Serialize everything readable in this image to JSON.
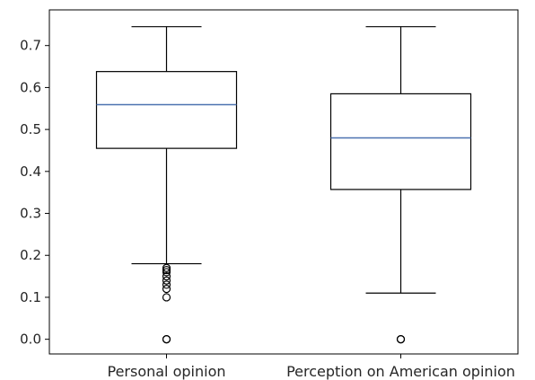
{
  "chart_data": {
    "type": "box",
    "title": "",
    "xlabel": "",
    "ylabel": "",
    "categories": [
      "Personal opinion",
      "Perception on American opinion"
    ],
    "ylim": [
      -0.035,
      0.785
    ],
    "yticks": [
      0.0,
      0.1,
      0.2,
      0.3,
      0.4,
      0.5,
      0.6,
      0.7
    ],
    "ytick_labels": [
      "0.0",
      "0.1",
      "0.2",
      "0.3",
      "0.4",
      "0.5",
      "0.6",
      "0.7"
    ],
    "grid": false,
    "legend": "none",
    "boxes": [
      {
        "name": "Personal opinion",
        "whisker_low": 0.18,
        "q1": 0.455,
        "median": 0.559,
        "q3": 0.638,
        "whisker_high": 0.745,
        "outliers": [
          0.17,
          0.165,
          0.16,
          0.15,
          0.14,
          0.13,
          0.12,
          0.1,
          0.0,
          0.0
        ]
      },
      {
        "name": "Perception on American opinion",
        "whisker_low": 0.11,
        "q1": 0.357,
        "median": 0.48,
        "q3": 0.585,
        "whisker_high": 0.745,
        "outliers": [
          0.0,
          0.0
        ]
      }
    ],
    "colors": {
      "box_edge": "#000000",
      "median": "#4c72b0",
      "whisker": "#000000",
      "outlier_edge": "#000000",
      "axes": "#000000",
      "text": "#262626"
    }
  }
}
